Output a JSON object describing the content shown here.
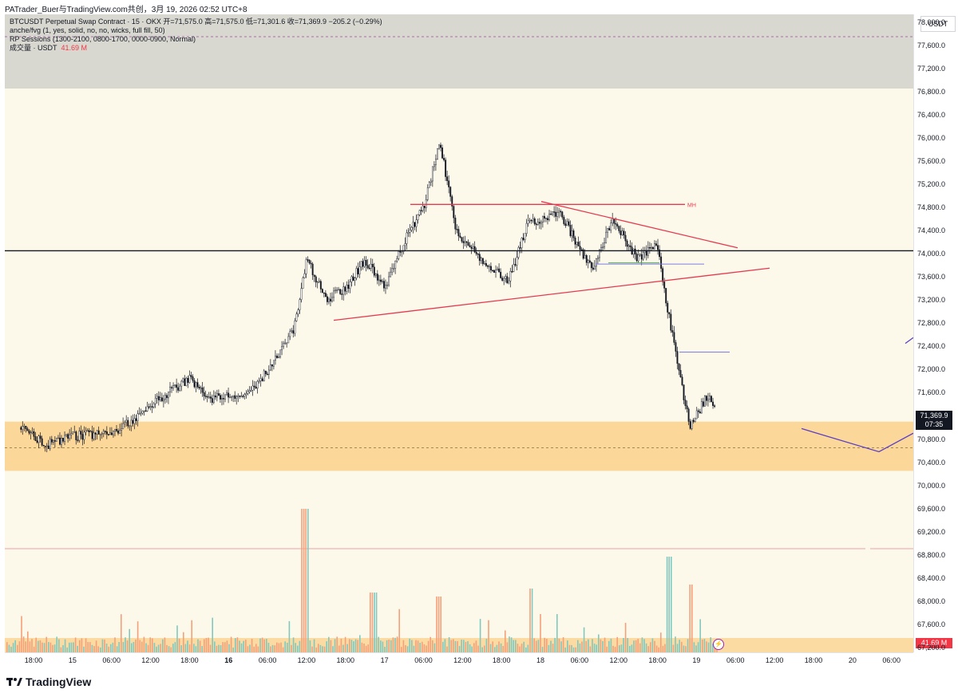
{
  "header": {
    "attribution": "PATrader_Buer与TradingView.com共创，3月 19, 2026 02:52 UTC+8"
  },
  "legend": {
    "symbol_line": "BTCUSDT Perpetual Swap Contract · 15 · OKX  开=71,575.0  高=71,575.0  低=71,301.6  收=71,369.9  −205.2 (−0.29%)",
    "indicator_1": "anche/fvg (1, yes, solid, no, no, wicks, full fill, 50)",
    "indicator_2": "RP Sessions (1300-2100, 0800-1700, 0000-0900, Normal)",
    "volume_label": "成交量 · USDT",
    "volume_value": "41.69 M"
  },
  "price_axis": {
    "currency": "USDT",
    "ticks": [
      "78,000.0",
      "77,600.0",
      "77,200.0",
      "76,800.0",
      "76,400.0",
      "76,000.0",
      "75,600.0",
      "75,200.0",
      "74,800.0",
      "74,400.0",
      "74,000.0",
      "73,600.0",
      "73,200.0",
      "72,800.0",
      "72,400.0",
      "72,000.0",
      "71,600.0",
      "70,800.0",
      "70,400.0",
      "70,000.0",
      "69,600.0",
      "69,200.0",
      "68,800.0",
      "68,400.0",
      "68,000.0",
      "67,600.0",
      "67,200.0"
    ],
    "last_price": "71,369.9",
    "countdown": "07:35",
    "volume_tag": "41.69 M"
  },
  "time_axis": [
    {
      "label": "18:00",
      "bold": false
    },
    {
      "label": "15",
      "bold": false
    },
    {
      "label": "06:00",
      "bold": false
    },
    {
      "label": "12:00",
      "bold": false
    },
    {
      "label": "18:00",
      "bold": false
    },
    {
      "label": "16",
      "bold": true
    },
    {
      "label": "06:00",
      "bold": false
    },
    {
      "label": "12:00",
      "bold": false
    },
    {
      "label": "18:00",
      "bold": false
    },
    {
      "label": "17",
      "bold": false
    },
    {
      "label": "06:00",
      "bold": false
    },
    {
      "label": "12:00",
      "bold": false
    },
    {
      "label": "18:00",
      "bold": false
    },
    {
      "label": "18",
      "bold": false
    },
    {
      "label": "06:00",
      "bold": false
    },
    {
      "label": "12:00",
      "bold": false
    },
    {
      "label": "18:00",
      "bold": false
    },
    {
      "label": "19",
      "bold": false
    },
    {
      "label": "06:00",
      "bold": false
    },
    {
      "label": "12:00",
      "bold": false
    },
    {
      "label": "18:00",
      "bold": false
    },
    {
      "label": "20",
      "bold": false
    },
    {
      "label": "06:00",
      "bold": false
    }
  ],
  "annotations": {
    "mh_label": "MH"
  },
  "footer": {
    "brand": "TradingView"
  },
  "colors": {
    "premarket_band": "#d8d8d0",
    "plot_bg": "#fdf9ea",
    "demand_zone": "#fcd79a",
    "trendline": "#e53950",
    "horizontal_level": "#131722",
    "ray": "#5b3fc4",
    "candle": "#131722",
    "volume_up": "#7fc9c1",
    "volume_down": "#f5a07a"
  },
  "chart_data": {
    "type": "candlestick",
    "symbol": "BTCUSDT Perpetual Swap Contract",
    "exchange": "OKX",
    "interval": "15",
    "open": 71575.0,
    "high": 71575.0,
    "low": 71301.6,
    "close": 71369.9,
    "change": -205.2,
    "change_pct": -0.29,
    "ylim": [
      67200,
      78400
    ],
    "path_points": [
      {
        "t": "14 16:00",
        "p": 71000
      },
      {
        "t": "14 20:00",
        "p": 70700
      },
      {
        "t": "15 00:00",
        "p": 70850
      },
      {
        "t": "15 06:00",
        "p": 70900
      },
      {
        "t": "15 09:00",
        "p": 71100
      },
      {
        "t": "15 12:00",
        "p": 71400
      },
      {
        "t": "15 18:00",
        "p": 71850
      },
      {
        "t": "15 21:00",
        "p": 71500
      },
      {
        "t": "16 03:00",
        "p": 71550
      },
      {
        "t": "16 08:00",
        "p": 72300
      },
      {
        "t": "16 10:00",
        "p": 72700
      },
      {
        "t": "16 12:00",
        "p": 73900
      },
      {
        "t": "16 15:00",
        "p": 73200
      },
      {
        "t": "16 18:00",
        "p": 73400
      },
      {
        "t": "16 21:00",
        "p": 73900
      },
      {
        "t": "17 00:00",
        "p": 73400
      },
      {
        "t": "17 03:00",
        "p": 74200
      },
      {
        "t": "17 06:00",
        "p": 74800
      },
      {
        "t": "17 08:30",
        "p": 75950
      },
      {
        "t": "17 11:00",
        "p": 74400
      },
      {
        "t": "17 15:00",
        "p": 73900
      },
      {
        "t": "17 19:00",
        "p": 73500
      },
      {
        "t": "17 22:00",
        "p": 74500
      },
      {
        "t": "18 03:00",
        "p": 74700
      },
      {
        "t": "18 08:00",
        "p": 73700
      },
      {
        "t": "18 11:00",
        "p": 74600
      },
      {
        "t": "18 15:00",
        "p": 73900
      },
      {
        "t": "18 18:00",
        "p": 74200
      },
      {
        "t": "18 19:00",
        "p": 73400
      },
      {
        "t": "18 21:00",
        "p": 72200
      },
      {
        "t": "18 23:00",
        "p": 71000
      },
      {
        "t": "19 02:00",
        "p": 71600
      },
      {
        "t": "19 02:52",
        "p": 71370
      }
    ],
    "zones": [
      {
        "name": "demand zone",
        "from": 70250,
        "to": 71100
      },
      {
        "name": "premarket band",
        "from": 76850,
        "to": 78400
      }
    ],
    "levels": [
      {
        "name": "horizontal level",
        "price": 74050
      },
      {
        "name": "MH",
        "price": 74850
      },
      {
        "name": "volume threshold",
        "price": 69000
      }
    ],
    "volume_last": "41.69M"
  }
}
